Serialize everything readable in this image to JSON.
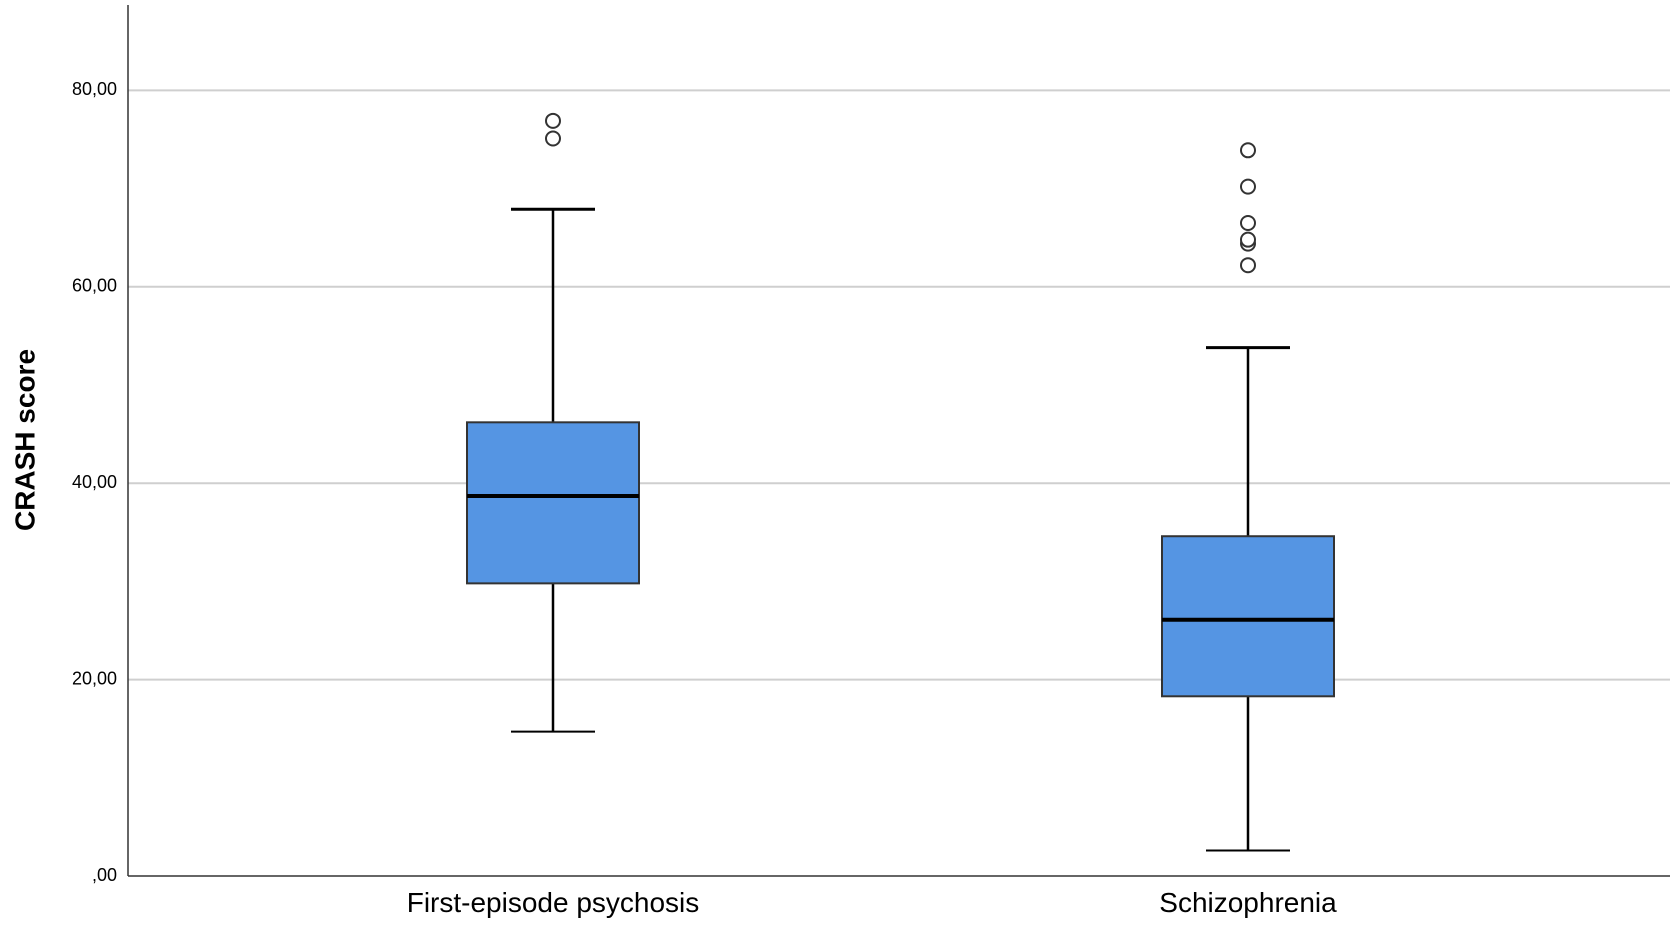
{
  "chart_data": {
    "type": "boxplot",
    "title": "",
    "xlabel": "",
    "ylabel": "CRASH score",
    "ylim": [
      0,
      88
    ],
    "yticks": [
      0,
      20,
      40,
      60,
      80
    ],
    "ytick_labels": [
      ",00",
      "20,00",
      "40,00",
      "60,00",
      "80,00"
    ],
    "grid": true,
    "box_color": "#5595E3",
    "categories": [
      "First-episode psychosis",
      "Schizophrenia"
    ],
    "boxes": [
      {
        "category": "First-episode psychosis",
        "whisker_low": 14.7,
        "q1": 29.8,
        "median": 38.7,
        "q3": 46.2,
        "whisker_high": 67.9,
        "outliers": [
          75.1,
          76.9
        ]
      },
      {
        "category": "Schizophrenia",
        "whisker_low": 2.6,
        "q1": 18.3,
        "median": 26.1,
        "q3": 34.6,
        "whisker_high": 53.8,
        "outliers": [
          62.2,
          64.4,
          64.8,
          66.5,
          70.2,
          73.9
        ]
      }
    ]
  }
}
